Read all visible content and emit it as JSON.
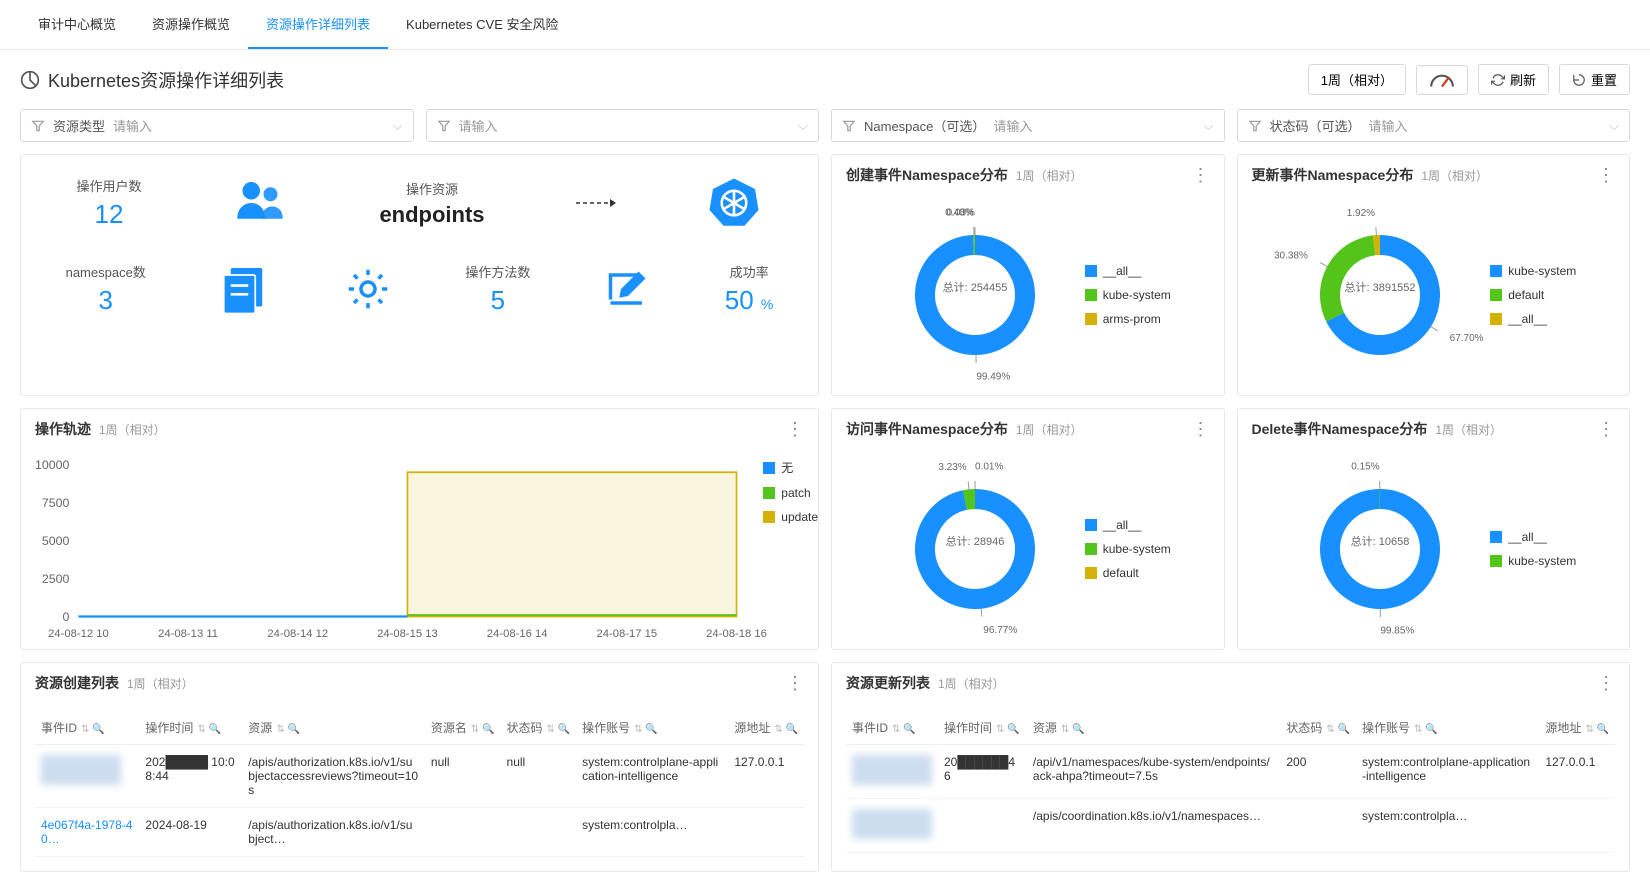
{
  "tabs": [
    "审计中心概览",
    "资源操作概览",
    "资源操作详细列表",
    "Kubernetes CVE 安全风险"
  ],
  "active_tab": 2,
  "page_title": "Kubernetes资源操作详细列表",
  "toolbar": {
    "time_range": "1周（相对）",
    "refresh": "刷新",
    "reset": "重置"
  },
  "filters": [
    {
      "label": "资源类型",
      "placeholder": "请输入"
    },
    {
      "label": "",
      "placeholder": "请输入"
    },
    {
      "label": "Namespace（可选）",
      "placeholder": "请输入"
    },
    {
      "label": "状态码（可选）",
      "placeholder": "请输入"
    }
  ],
  "overview": {
    "users_label": "操作用户数",
    "users_value": "12",
    "resource_top_label": "操作资源",
    "resource_value": "endpoints",
    "namespace_label": "namespace数",
    "namespace_value": "3",
    "methods_label": "操作方法数",
    "methods_value": "5",
    "success_label": "成功率",
    "success_value": "50",
    "success_unit": "%",
    "accent": "#1890ff"
  },
  "donut_charts": {
    "create": {
      "title": "创建事件Namespace分布",
      "sub": "1周（相对）",
      "center_label": "总计:",
      "center_value": "254455",
      "slices": [
        {
          "label": "__all__",
          "pct": 99.49,
          "color": "#1890ff"
        },
        {
          "label": "kube-system",
          "pct": 0.48,
          "color": "#52c41a"
        },
        {
          "label": "arms-prom",
          "pct": 0.03,
          "color": "#d4b106"
        }
      ],
      "legend": [
        "__all__",
        "kube-system",
        "arms-prom"
      ]
    },
    "update": {
      "title": "更新事件Namespace分布",
      "sub": "1周（相对）",
      "center_label": "总计:",
      "center_value": "3891552",
      "slices": [
        {
          "label": "kube-system",
          "pct": 67.7,
          "color": "#1890ff"
        },
        {
          "label": "default",
          "pct": 30.38,
          "color": "#52c41a"
        },
        {
          "label": "__all__",
          "pct": 1.92,
          "color": "#d4b106"
        }
      ],
      "legend": [
        "kube-system",
        "default",
        "__all__"
      ]
    },
    "access": {
      "title": "访问事件Namespace分布",
      "sub": "1周（相对）",
      "center_label": "总计:",
      "center_value": "28946",
      "slices": [
        {
          "label": "__all__",
          "pct": 96.77,
          "color": "#1890ff"
        },
        {
          "label": "kube-system",
          "pct": 3.23,
          "color": "#52c41a"
        },
        {
          "label": "default",
          "pct": 0.01,
          "color": "#d4b106"
        }
      ],
      "legend": [
        "__all__",
        "kube-system",
        "default"
      ]
    },
    "delete": {
      "title": "Delete事件Namespace分布",
      "sub": "1周（相对）",
      "center_label": "总计:",
      "center_value": "10658",
      "slices": [
        {
          "label": "__all__",
          "pct": 99.85,
          "color": "#1890ff"
        },
        {
          "label": "kube-system",
          "pct": 0.15,
          "color": "#52c41a"
        }
      ],
      "legend": [
        "__all__",
        "kube-system"
      ]
    }
  },
  "line_chart": {
    "title": "操作轨迹",
    "sub": "1周（相对）",
    "y_ticks": [
      "10000",
      "7500",
      "5000",
      "2500",
      "0"
    ],
    "x_ticks": [
      "24-08-12 10",
      "24-08-13 11",
      "24-08-14 12",
      "24-08-15 13",
      "24-08-16 14",
      "24-08-17 15",
      "24-08-18 16"
    ],
    "ylim": [
      0,
      10000
    ],
    "series": [
      {
        "name": "无",
        "color": "#1890ff",
        "points": [
          0,
          0,
          0,
          0,
          0,
          0,
          0
        ]
      },
      {
        "name": "patch",
        "color": "#52c41a",
        "points": [
          null,
          null,
          null,
          100,
          100,
          100,
          100
        ]
      },
      {
        "name": "update",
        "color": "#d4b106",
        "points": [
          null,
          null,
          null,
          9500,
          9500,
          9500,
          9500
        ]
      }
    ],
    "legend": [
      "无",
      "patch",
      "update"
    ],
    "legend_colors": [
      "#1890ff",
      "#52c41a",
      "#d4b106"
    ]
  },
  "tables": {
    "create": {
      "title": "资源创建列表",
      "sub": "1周（相对）",
      "columns": [
        "事件ID",
        "操作时间",
        "资源",
        "资源名",
        "状态码",
        "操作账号",
        "源地址"
      ],
      "rows": [
        {
          "id_blur": true,
          "time": "202█████ 10:08:44",
          "resource": "/apis/authorization.k8s.io/v1/subjectaccessreviews?timeout=10s",
          "name": "null",
          "code": "null",
          "account": "system:controlplane-application-intelligence",
          "source": "127.0.0.1"
        },
        {
          "id": "4e067f4a-1978-40…",
          "time": "2024-08-19",
          "resource": "/apis/authorization.k8s.io/v1/subject…",
          "name": "",
          "code": "",
          "account": "system:controlpla…",
          "source": ""
        }
      ]
    },
    "update": {
      "title": "资源更新列表",
      "sub": "1周（相对）",
      "columns": [
        "事件ID",
        "操作时间",
        "资源",
        "状态码",
        "操作账号",
        "源地址"
      ],
      "rows": [
        {
          "id_blur": true,
          "time": "20██████46",
          "resource": "/api/v1/namespaces/kube-system/endpoints/ack-ahpa?timeout=7.5s",
          "code": "200",
          "account": "system:controlplane-application-intelligence",
          "source": "127.0.0.1"
        },
        {
          "id_blur": true,
          "time": "",
          "resource": "/apis/coordination.k8s.io/v1/namespaces…",
          "code": "",
          "account": "system:controlpla…",
          "source": ""
        }
      ]
    }
  }
}
